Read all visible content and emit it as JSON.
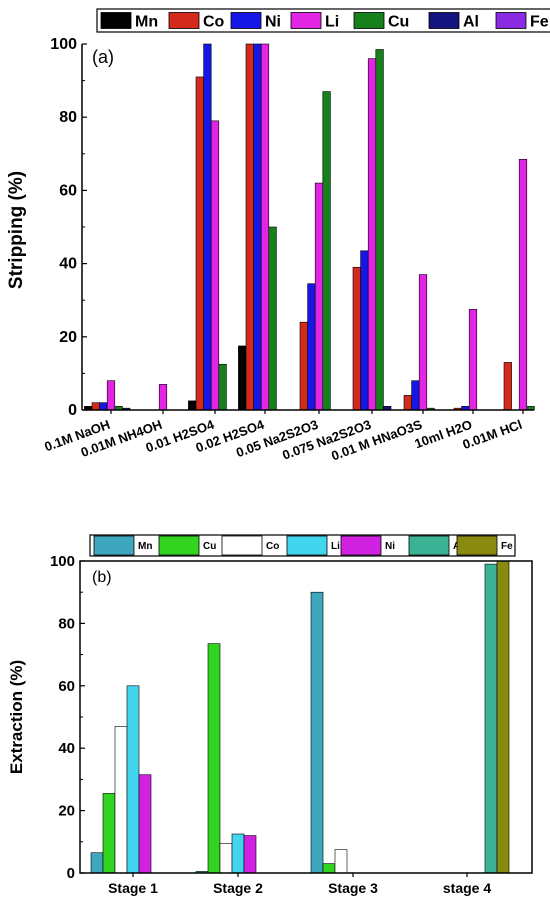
{
  "chart_data": [
    {
      "type": "bar",
      "panel_label": "(a)",
      "ylabel": "Stripping (%)",
      "xlabel": "",
      "ylim": [
        0,
        100
      ],
      "yticks": [
        0,
        20,
        40,
        60,
        80,
        100
      ],
      "grid": false,
      "legend_position": "top",
      "categories": [
        "0.1M NaOH",
        "0.01M NH4OH",
        "0.01 H2SO4",
        "0.02 H2SO4",
        "0.05 Na2S2O3",
        "0.075 Na2S2O3",
        "0.01 M HNaO3S",
        "10ml H2O",
        "0.01M HCl"
      ],
      "series": [
        {
          "name": "Mn",
          "color": "#000000",
          "values": [
            1,
            0,
            2.5,
            17.5,
            0,
            0,
            0,
            0,
            0
          ]
        },
        {
          "name": "Co",
          "color": "#d42a1b",
          "values": [
            2,
            0,
            91,
            100,
            24,
            39,
            4,
            0.5,
            13
          ]
        },
        {
          "name": "Ni",
          "color": "#1616e6",
          "values": [
            2,
            0,
            100,
            100,
            34.5,
            43.5,
            8,
            1,
            0
          ]
        },
        {
          "name": "Li",
          "color": "#e225e2",
          "values": [
            8,
            7,
            79,
            100,
            62,
            96,
            37,
            27.5,
            68.5
          ]
        },
        {
          "name": "Cu",
          "color": "#16811a",
          "values": [
            1,
            0,
            12.5,
            50,
            87,
            98.5,
            0.5,
            0,
            1
          ]
        },
        {
          "name": "Al",
          "color": "#14147e",
          "values": [
            0.5,
            0,
            0,
            0,
            0,
            1,
            0,
            0,
            0
          ]
        },
        {
          "name": "Fe",
          "color": "#8a2be2",
          "values": [
            0,
            0,
            0,
            0,
            0,
            0,
            0,
            0,
            0
          ]
        }
      ]
    },
    {
      "type": "bar",
      "panel_label": "(b)",
      "ylabel": "Extraction (%)",
      "xlabel": "",
      "ylim": [
        0,
        100
      ],
      "yticks": [
        0,
        20,
        40,
        60,
        80,
        100
      ],
      "grid": false,
      "legend_position": "top",
      "categories": [
        "Stage 1",
        "Stage 2",
        "Stage 3",
        "stage 4"
      ],
      "series": [
        {
          "name": "Mn",
          "color": "#3fa7bd",
          "values": [
            6.5,
            0.5,
            90,
            0
          ]
        },
        {
          "name": "Cu",
          "color": "#33d41f",
          "values": [
            25.5,
            73.5,
            3,
            0
          ]
        },
        {
          "name": "Co",
          "color": "#ffffff",
          "values": [
            47,
            9.5,
            7.5,
            0
          ]
        },
        {
          "name": "Li",
          "color": "#42d6ee",
          "values": [
            60,
            12.5,
            0,
            0
          ]
        },
        {
          "name": "Ni",
          "color": "#d022e0",
          "values": [
            31.5,
            12,
            0,
            0
          ]
        },
        {
          "name": "Al",
          "color": "#3bb394",
          "values": [
            0,
            0,
            0,
            99
          ]
        },
        {
          "name": "Fe",
          "color": "#8a8a10",
          "values": [
            0,
            0,
            0,
            100
          ]
        }
      ]
    }
  ]
}
